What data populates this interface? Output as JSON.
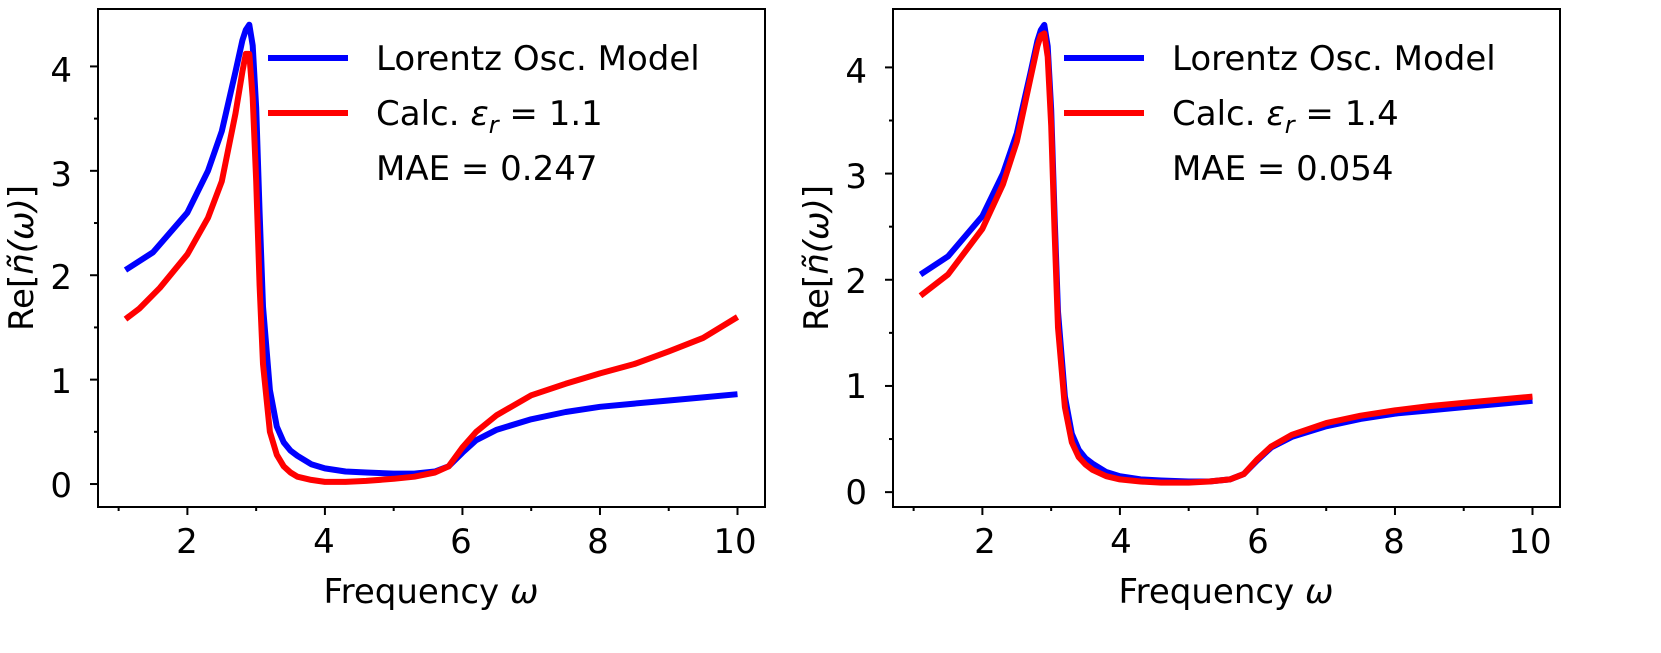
{
  "chart_data": [
    {
      "type": "line",
      "xlabel_prefix": "Frequency ",
      "xlabel_symbol": "ω",
      "ylabel_prefix": "Re[",
      "ylabel_symbol": "ñ(ω)",
      "ylabel_suffix": "]",
      "xlim": [
        0.7,
        10.4
      ],
      "ylim": [
        -0.22,
        4.55
      ],
      "x_major_ticks": [
        2,
        4,
        6,
        8,
        10
      ],
      "x_tick_labels": [
        "2",
        "4",
        "6",
        "8",
        "10"
      ],
      "y_major_ticks": [
        0,
        1,
        2,
        3,
        4
      ],
      "y_tick_labels": [
        "0",
        "1",
        "2",
        "3",
        "4"
      ],
      "x_minor_ticks": [
        1,
        3,
        5,
        7,
        9
      ],
      "y_minor_ticks": [
        0.5,
        1.5,
        2.5,
        3.5
      ],
      "legend": {
        "position": "top-right",
        "entry1": "Lorentz Osc. Model",
        "entry2_prefix": "Calc. ",
        "entry2_symbol": "ε",
        "entry2_subscript": "r",
        "entry2_value": " = 1.1",
        "annotation": "MAE = 0.247"
      },
      "series": [
        {
          "name": "Lorentz Osc. Model",
          "color": "#0000ff",
          "x": [
            1.1,
            1.5,
            2.0,
            2.3,
            2.5,
            2.7,
            2.8,
            2.85,
            2.9,
            2.95,
            3.0,
            3.05,
            3.1,
            3.2,
            3.3,
            3.4,
            3.5,
            3.6,
            3.8,
            4.0,
            4.3,
            4.6,
            5.0,
            5.3,
            5.6,
            5.8,
            6.0,
            6.2,
            6.5,
            7.0,
            7.5,
            8.0,
            8.5,
            9.0,
            9.5,
            10.0
          ],
          "y": [
            2.05,
            2.22,
            2.6,
            3.0,
            3.38,
            3.95,
            4.25,
            4.35,
            4.4,
            4.2,
            3.6,
            2.6,
            1.7,
            0.9,
            0.55,
            0.4,
            0.32,
            0.27,
            0.19,
            0.15,
            0.12,
            0.11,
            0.1,
            0.1,
            0.12,
            0.17,
            0.3,
            0.42,
            0.52,
            0.62,
            0.69,
            0.74,
            0.77,
            0.8,
            0.83,
            0.86
          ]
        },
        {
          "name": "Calc. εr = 1.1",
          "color": "#ff0000",
          "x": [
            1.1,
            1.3,
            1.6,
            2.0,
            2.3,
            2.5,
            2.7,
            2.8,
            2.85,
            2.9,
            2.95,
            3.0,
            3.05,
            3.1,
            3.2,
            3.3,
            3.4,
            3.5,
            3.6,
            3.8,
            4.0,
            4.3,
            4.6,
            5.0,
            5.3,
            5.6,
            5.8,
            6.0,
            6.2,
            6.5,
            7.0,
            7.5,
            8.0,
            8.5,
            9.0,
            9.5,
            10.0
          ],
          "y": [
            1.58,
            1.68,
            1.88,
            2.2,
            2.55,
            2.9,
            3.55,
            3.95,
            4.12,
            4.12,
            3.7,
            2.9,
            1.9,
            1.15,
            0.5,
            0.28,
            0.17,
            0.11,
            0.07,
            0.04,
            0.02,
            0.02,
            0.03,
            0.05,
            0.07,
            0.11,
            0.17,
            0.35,
            0.5,
            0.66,
            0.85,
            0.96,
            1.06,
            1.15,
            1.27,
            1.4,
            1.6
          ]
        }
      ]
    },
    {
      "type": "line",
      "xlabel_prefix": "Frequency ",
      "xlabel_symbol": "ω",
      "ylabel_prefix": "Re[",
      "ylabel_symbol": "ñ(ω)",
      "ylabel_suffix": "]",
      "xlim": [
        0.7,
        10.4
      ],
      "ylim": [
        -0.14,
        4.55
      ],
      "x_major_ticks": [
        2,
        4,
        6,
        8,
        10
      ],
      "x_tick_labels": [
        "2",
        "4",
        "6",
        "8",
        "10"
      ],
      "y_major_ticks": [
        0,
        1,
        2,
        3,
        4
      ],
      "y_tick_labels": [
        "0",
        "1",
        "2",
        "3",
        "4"
      ],
      "x_minor_ticks": [
        1,
        3,
        5,
        7,
        9
      ],
      "y_minor_ticks": [
        0.5,
        1.5,
        2.5,
        3.5
      ],
      "legend": {
        "position": "top-right",
        "entry1": "Lorentz Osc. Model",
        "entry2_prefix": "Calc. ",
        "entry2_symbol": "ε",
        "entry2_subscript": "r",
        "entry2_value": " = 1.4",
        "annotation": "MAE = 0.054"
      },
      "series": [
        {
          "name": "Lorentz Osc. Model",
          "color": "#0000ff",
          "x": [
            1.1,
            1.5,
            2.0,
            2.3,
            2.5,
            2.7,
            2.8,
            2.85,
            2.9,
            2.95,
            3.0,
            3.05,
            3.1,
            3.2,
            3.3,
            3.4,
            3.5,
            3.6,
            3.8,
            4.0,
            4.3,
            4.6,
            5.0,
            5.3,
            5.6,
            5.8,
            6.0,
            6.2,
            6.5,
            7.0,
            7.5,
            8.0,
            8.5,
            9.0,
            9.5,
            10.0
          ],
          "y": [
            2.05,
            2.22,
            2.6,
            3.0,
            3.38,
            3.95,
            4.25,
            4.35,
            4.4,
            4.2,
            3.6,
            2.6,
            1.7,
            0.9,
            0.55,
            0.4,
            0.32,
            0.27,
            0.19,
            0.15,
            0.12,
            0.11,
            0.1,
            0.1,
            0.12,
            0.17,
            0.3,
            0.42,
            0.52,
            0.62,
            0.69,
            0.74,
            0.77,
            0.8,
            0.83,
            0.86
          ]
        },
        {
          "name": "Calc. εr = 1.4",
          "color": "#ff0000",
          "x": [
            1.1,
            1.5,
            2.0,
            2.3,
            2.5,
            2.7,
            2.8,
            2.85,
            2.9,
            2.95,
            3.0,
            3.05,
            3.1,
            3.2,
            3.3,
            3.4,
            3.5,
            3.6,
            3.8,
            4.0,
            4.3,
            4.6,
            5.0,
            5.3,
            5.6,
            5.8,
            6.0,
            6.2,
            6.5,
            7.0,
            7.5,
            8.0,
            8.5,
            9.0,
            9.5,
            10.0
          ],
          "y": [
            1.85,
            2.05,
            2.48,
            2.9,
            3.3,
            3.9,
            4.2,
            4.3,
            4.32,
            4.1,
            3.45,
            2.45,
            1.55,
            0.8,
            0.47,
            0.33,
            0.26,
            0.21,
            0.15,
            0.12,
            0.1,
            0.09,
            0.09,
            0.1,
            0.12,
            0.17,
            0.31,
            0.43,
            0.54,
            0.65,
            0.72,
            0.77,
            0.81,
            0.84,
            0.87,
            0.9
          ]
        }
      ]
    }
  ]
}
